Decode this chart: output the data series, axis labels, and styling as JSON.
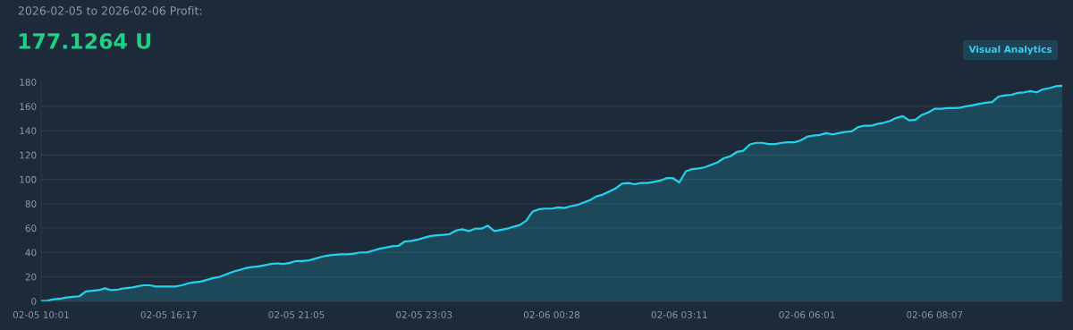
{
  "chart_data": {
    "type": "area",
    "title": "2026-02-05 to 2026-02-06 Profit:",
    "subtitle": "177.1264 U",
    "annotations": [
      "Visual Analytics"
    ],
    "categories": [
      "02-05 10:01",
      null,
      null,
      null,
      null,
      null,
      null,
      null,
      null,
      null,
      null,
      null,
      null,
      null,
      null,
      null,
      null,
      null,
      null,
      null,
      "02-05 16:17",
      null,
      null,
      null,
      null,
      null,
      null,
      null,
      null,
      null,
      null,
      null,
      null,
      null,
      null,
      null,
      null,
      null,
      null,
      null,
      "02-05 21:05",
      null,
      null,
      null,
      null,
      null,
      null,
      null,
      null,
      null,
      null,
      null,
      null,
      null,
      null,
      null,
      null,
      null,
      null,
      null,
      "02-05 23:03",
      null,
      null,
      null,
      null,
      null,
      null,
      null,
      null,
      null,
      null,
      null,
      null,
      null,
      null,
      null,
      null,
      null,
      null,
      null,
      "02-06 00:28",
      null,
      null,
      null,
      null,
      null,
      null,
      null,
      null,
      null,
      null,
      null,
      null,
      null,
      null,
      null,
      null,
      null,
      null,
      null,
      "02-06 03:11",
      null,
      null,
      null,
      null,
      null,
      null,
      null,
      null,
      null,
      null,
      null,
      null,
      null,
      null,
      null,
      null,
      null,
      null,
      null,
      "02-06 06:01",
      null,
      null,
      null,
      null,
      null,
      null,
      null,
      null,
      null,
      null,
      null,
      null,
      null,
      null,
      null,
      null,
      null,
      null,
      null,
      "02-06 08:07",
      null,
      null,
      null,
      null,
      null,
      null,
      null,
      null,
      null,
      null,
      null,
      null,
      null,
      null,
      null,
      null,
      null,
      null,
      null,
      null
    ],
    "series": [
      {
        "color": "#22d3ee",
        "values": [
          0,
          0.5,
          1.5,
          2,
          3,
          3.5,
          4,
          8,
          8.5,
          9,
          10.5,
          9,
          9.5,
          10.5,
          11,
          12,
          13,
          13,
          12,
          12,
          12,
          12,
          13,
          14.5,
          15.5,
          16,
          17.5,
          19,
          20,
          22,
          24,
          25.5,
          27,
          28,
          28.5,
          29.5,
          30.5,
          31,
          30.5,
          31.5,
          33,
          33,
          33.5,
          35,
          36.5,
          37.5,
          38,
          38.5,
          38.5,
          39,
          40,
          40,
          41.5,
          43,
          44,
          45,
          45.5,
          49,
          49.5,
          50.5,
          52,
          53.5,
          54,
          54.5,
          55,
          58,
          59,
          57.5,
          59.5,
          59.5,
          62,
          57.5,
          58.5,
          59.5,
          61,
          62.5,
          66,
          73.5,
          75.5,
          76,
          76,
          77,
          76.5,
          78,
          79,
          81,
          83,
          86,
          87.5,
          90,
          92.5,
          96.5,
          97,
          96,
          97,
          97,
          98,
          99,
          101,
          101,
          97.5,
          106.5,
          108.5,
          109,
          110,
          112,
          114,
          117.5,
          119,
          122.5,
          123.5,
          128.5,
          130,
          130,
          129,
          129,
          130,
          130.5,
          130.5,
          132,
          135,
          136,
          136.5,
          138,
          137,
          138,
          139,
          139.5,
          143,
          144,
          144,
          145.5,
          146.5,
          148,
          150.5,
          152,
          148.5,
          149,
          153,
          155,
          158,
          158,
          158.5,
          158.5,
          159,
          160,
          161,
          162,
          163,
          163.5,
          168,
          169,
          169.5,
          171,
          171.5,
          172.5,
          171.5,
          174,
          175,
          176.5,
          177
        ]
      }
    ],
    "ylim": [
      0,
      180
    ],
    "yticks": [
      0,
      20,
      40,
      60,
      80,
      100,
      120,
      140,
      160,
      180
    ],
    "grid": "y"
  }
}
